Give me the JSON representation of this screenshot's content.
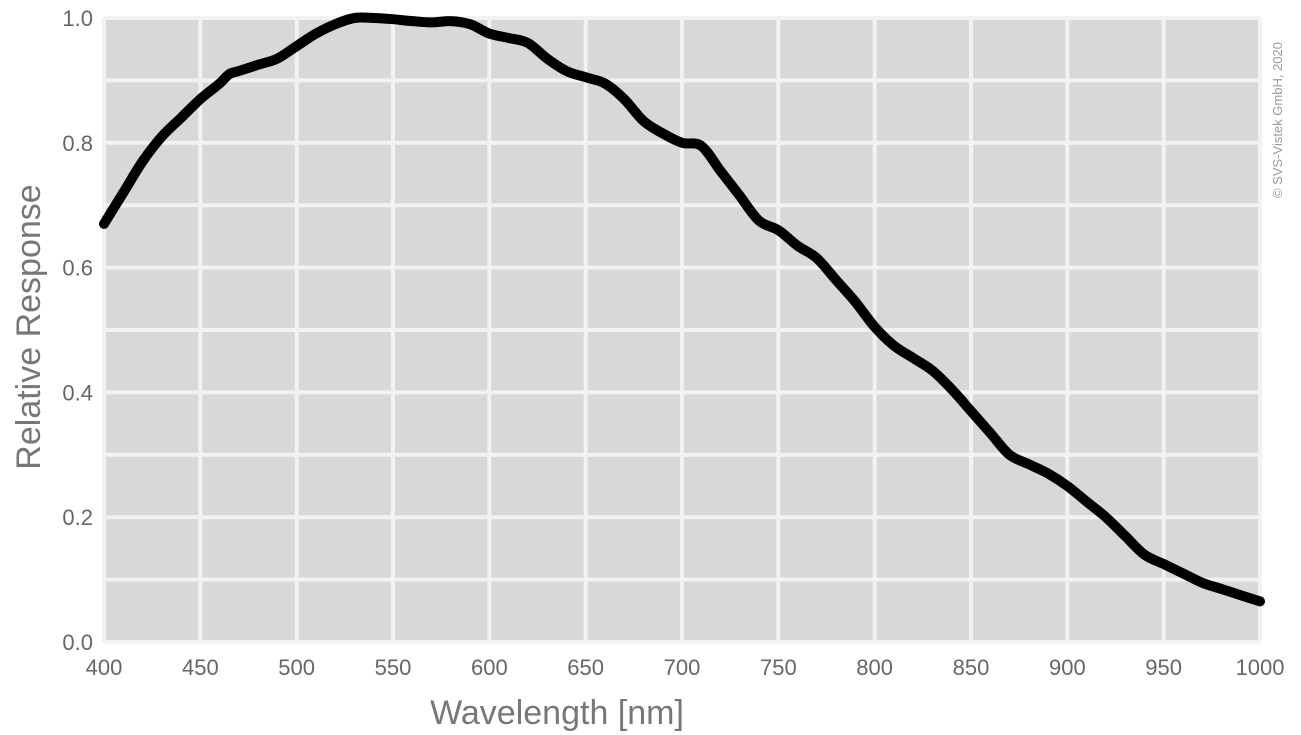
{
  "chart_data": {
    "type": "line",
    "title": "",
    "xlabel": "Wavelength [nm]",
    "ylabel": "Relative Response",
    "xlim": [
      400,
      1000
    ],
    "ylim": [
      0.0,
      1.0
    ],
    "x_ticks": [
      "400",
      "450",
      "500",
      "550",
      "600",
      "650",
      "700",
      "750",
      "800",
      "850",
      "900",
      "950",
      "1000"
    ],
    "y_ticks": [
      "0.0",
      "0.2",
      "0.4",
      "0.6",
      "0.8",
      "1.0"
    ],
    "grid": true,
    "legend": "none",
    "annotation": "© SVS-Vistek GmbH, 2020",
    "colors": {
      "plot_background": "#d8d8d8",
      "grid": "#f2f2f2",
      "line": "#000000"
    },
    "series": [
      {
        "x": [
          400,
          410,
          420,
          430,
          440,
          450,
          460,
          465,
          470,
          480,
          490,
          500,
          510,
          520,
          530,
          540,
          550,
          560,
          570,
          580,
          590,
          600,
          610,
          620,
          630,
          640,
          650,
          660,
          670,
          680,
          690,
          700,
          710,
          720,
          730,
          740,
          750,
          760,
          770,
          780,
          790,
          800,
          810,
          820,
          830,
          840,
          850,
          860,
          870,
          880,
          890,
          900,
          910,
          920,
          930,
          940,
          950,
          960,
          970,
          980,
          990,
          1000
        ],
        "values": [
          0.67,
          0.72,
          0.77,
          0.81,
          0.84,
          0.87,
          0.895,
          0.91,
          0.915,
          0.925,
          0.935,
          0.955,
          0.975,
          0.99,
          1.0,
          1.0,
          0.998,
          0.995,
          0.993,
          0.995,
          0.99,
          0.975,
          0.968,
          0.96,
          0.935,
          0.915,
          0.905,
          0.895,
          0.87,
          0.835,
          0.815,
          0.8,
          0.795,
          0.755,
          0.715,
          0.675,
          0.66,
          0.635,
          0.615,
          0.58,
          0.545,
          0.505,
          0.475,
          0.455,
          0.435,
          0.405,
          0.37,
          0.335,
          0.3,
          0.285,
          0.27,
          0.25,
          0.225,
          0.2,
          0.17,
          0.14,
          0.125,
          0.11,
          0.095,
          0.085,
          0.075,
          0.065
        ]
      }
    ]
  }
}
